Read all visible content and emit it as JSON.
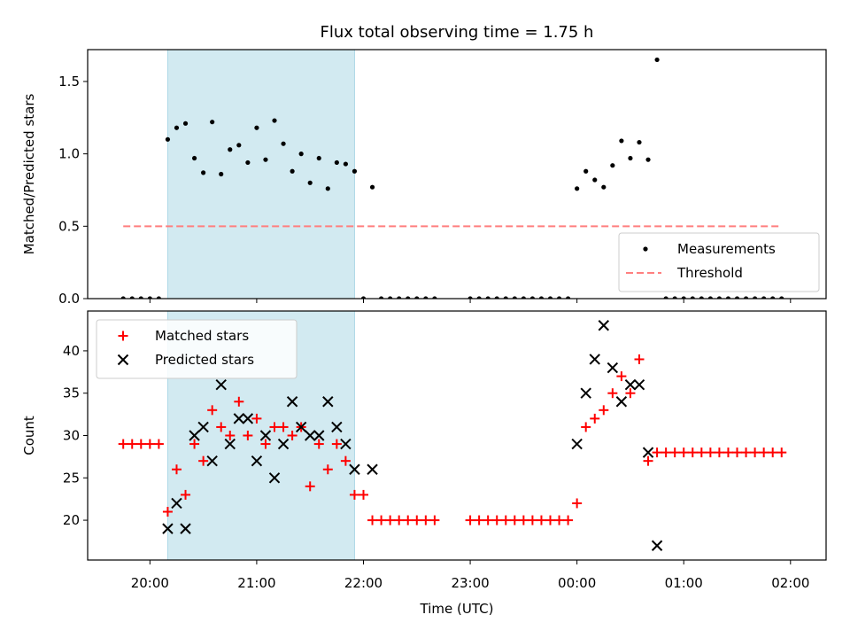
{
  "chart_data": {
    "title": "Flux total observing time = 1.75 h",
    "x_axis": {
      "label": "Time (UTC)",
      "unit": "minutes since 20:00",
      "range": [
        -35,
        380
      ],
      "tick_values": [
        0,
        60,
        120,
        180,
        240,
        300,
        360
      ],
      "tick_labels": [
        "20:00",
        "21:00",
        "22:00",
        "23:00",
        "00:00",
        "01:00",
        "02:00"
      ]
    },
    "shaded_region": {
      "x_start": 10,
      "x_end": 115,
      "color": "#add8e6"
    },
    "panels": [
      {
        "type": "scatter",
        "ylabel": "Matched/Predicted stars",
        "ylim": [
          0,
          1.72
        ],
        "yticks": [
          0.0,
          0.5,
          1.0,
          1.5
        ],
        "ytick_labels": [
          "0.0",
          "0.5",
          "1.0",
          "1.5"
        ],
        "legend_position": "lower-right",
        "series": [
          {
            "name": "Measurements",
            "marker": "dot",
            "color": "#000000",
            "points": [
              [
                -15,
                0
              ],
              [
                -10,
                0
              ],
              [
                -5,
                0
              ],
              [
                0,
                0
              ],
              [
                5,
                0
              ],
              [
                10,
                1.1
              ],
              [
                15,
                1.18
              ],
              [
                20,
                1.21
              ],
              [
                25,
                0.97
              ],
              [
                30,
                0.87
              ],
              [
                35,
                1.22
              ],
              [
                40,
                0.86
              ],
              [
                45,
                1.03
              ],
              [
                50,
                1.06
              ],
              [
                55,
                0.94
              ],
              [
                60,
                1.18
              ],
              [
                65,
                0.96
              ],
              [
                70,
                1.23
              ],
              [
                75,
                1.07
              ],
              [
                80,
                0.88
              ],
              [
                85,
                1.0
              ],
              [
                90,
                0.8
              ],
              [
                95,
                0.97
              ],
              [
                100,
                0.76
              ],
              [
                105,
                0.94
              ],
              [
                110,
                0.93
              ],
              [
                115,
                0.88
              ],
              [
                120,
                0
              ],
              [
                125,
                0.77
              ],
              [
                130,
                0
              ],
              [
                135,
                0
              ],
              [
                140,
                0
              ],
              [
                145,
                0
              ],
              [
                150,
                0
              ],
              [
                155,
                0
              ],
              [
                160,
                0
              ],
              [
                180,
                0
              ],
              [
                185,
                0
              ],
              [
                190,
                0
              ],
              [
                195,
                0
              ],
              [
                200,
                0
              ],
              [
                205,
                0
              ],
              [
                210,
                0
              ],
              [
                215,
                0
              ],
              [
                220,
                0
              ],
              [
                225,
                0
              ],
              [
                230,
                0
              ],
              [
                235,
                0
              ],
              [
                240,
                0.76
              ],
              [
                245,
                0.88
              ],
              [
                250,
                0.82
              ],
              [
                255,
                0.77
              ],
              [
                260,
                0.92
              ],
              [
                265,
                1.09
              ],
              [
                270,
                0.97
              ],
              [
                275,
                1.08
              ],
              [
                280,
                0.96
              ],
              [
                285,
                1.65
              ],
              [
                290,
                0
              ],
              [
                295,
                0
              ],
              [
                300,
                0
              ],
              [
                305,
                0
              ],
              [
                310,
                0
              ],
              [
                315,
                0
              ],
              [
                320,
                0
              ],
              [
                325,
                0
              ],
              [
                330,
                0
              ],
              [
                335,
                0
              ],
              [
                340,
                0
              ],
              [
                345,
                0
              ],
              [
                350,
                0
              ],
              [
                355,
                0
              ]
            ]
          }
        ],
        "reference_lines": [
          {
            "name": "Threshold",
            "y": 0.5,
            "x_start": -15,
            "x_end": 355,
            "color": "#ff7f7f",
            "style": "dashed"
          }
        ]
      },
      {
        "type": "scatter",
        "ylabel": "Count",
        "ylim": [
          15.3,
          44.7
        ],
        "yticks": [
          20,
          25,
          30,
          35,
          40
        ],
        "ytick_labels": [
          "20",
          "25",
          "30",
          "35",
          "40"
        ],
        "legend_position": "upper-left",
        "series": [
          {
            "name": "Matched stars",
            "marker": "plus",
            "color": "#ff0000",
            "points": [
              [
                -15,
                29
              ],
              [
                -10,
                29
              ],
              [
                -5,
                29
              ],
              [
                0,
                29
              ],
              [
                5,
                29
              ],
              [
                10,
                21
              ],
              [
                15,
                26
              ],
              [
                20,
                23
              ],
              [
                25,
                29
              ],
              [
                30,
                27
              ],
              [
                35,
                33
              ],
              [
                40,
                31
              ],
              [
                45,
                30
              ],
              [
                50,
                34
              ],
              [
                55,
                30
              ],
              [
                60,
                32
              ],
              [
                65,
                29
              ],
              [
                70,
                31
              ],
              [
                75,
                31
              ],
              [
                80,
                30
              ],
              [
                85,
                31
              ],
              [
                90,
                24
              ],
              [
                95,
                29
              ],
              [
                100,
                26
              ],
              [
                105,
                29
              ],
              [
                110,
                27
              ],
              [
                115,
                23
              ],
              [
                120,
                23
              ],
              [
                125,
                20
              ],
              [
                130,
                20
              ],
              [
                135,
                20
              ],
              [
                140,
                20
              ],
              [
                145,
                20
              ],
              [
                150,
                20
              ],
              [
                155,
                20
              ],
              [
                160,
                20
              ],
              [
                180,
                20
              ],
              [
                185,
                20
              ],
              [
                190,
                20
              ],
              [
                195,
                20
              ],
              [
                200,
                20
              ],
              [
                205,
                20
              ],
              [
                210,
                20
              ],
              [
                215,
                20
              ],
              [
                220,
                20
              ],
              [
                225,
                20
              ],
              [
                230,
                20
              ],
              [
                235,
                20
              ],
              [
                240,
                22
              ],
              [
                245,
                31
              ],
              [
                250,
                32
              ],
              [
                255,
                33
              ],
              [
                260,
                35
              ],
              [
                265,
                37
              ],
              [
                270,
                35
              ],
              [
                275,
                39
              ],
              [
                280,
                27
              ],
              [
                285,
                28
              ],
              [
                290,
                28
              ],
              [
                295,
                28
              ],
              [
                300,
                28
              ],
              [
                305,
                28
              ],
              [
                310,
                28
              ],
              [
                315,
                28
              ],
              [
                320,
                28
              ],
              [
                325,
                28
              ],
              [
                330,
                28
              ],
              [
                335,
                28
              ],
              [
                340,
                28
              ],
              [
                345,
                28
              ],
              [
                350,
                28
              ],
              [
                355,
                28
              ]
            ]
          },
          {
            "name": "Predicted stars",
            "marker": "x",
            "color": "#000000",
            "points": [
              [
                10,
                19
              ],
              [
                15,
                22
              ],
              [
                20,
                19
              ],
              [
                25,
                30
              ],
              [
                30,
                31
              ],
              [
                35,
                27
              ],
              [
                40,
                36
              ],
              [
                45,
                29
              ],
              [
                50,
                32
              ],
              [
                55,
                32
              ],
              [
                60,
                27
              ],
              [
                65,
                30
              ],
              [
                70,
                25
              ],
              [
                75,
                29
              ],
              [
                80,
                34
              ],
              [
                85,
                31
              ],
              [
                90,
                30
              ],
              [
                95,
                30
              ],
              [
                100,
                34
              ],
              [
                105,
                31
              ],
              [
                110,
                29
              ],
              [
                115,
                26
              ],
              [
                125,
                26
              ],
              [
                240,
                29
              ],
              [
                245,
                35
              ],
              [
                250,
                39
              ],
              [
                255,
                43
              ],
              [
                260,
                38
              ],
              [
                265,
                34
              ],
              [
                270,
                36
              ],
              [
                275,
                36
              ],
              [
                280,
                28
              ],
              [
                285,
                17
              ]
            ]
          }
        ]
      }
    ]
  }
}
